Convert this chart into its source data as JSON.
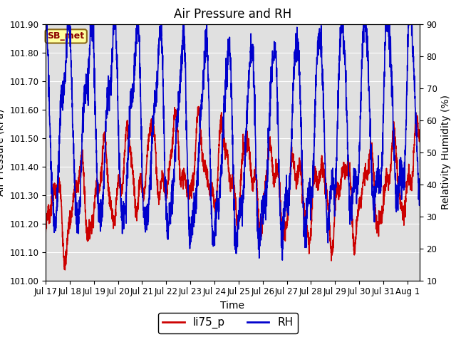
{
  "title": "Air Pressure and RH",
  "ylabel_left": "Air Pressure (kPa)",
  "ylabel_right": "Relativity Humidity (%)",
  "xlabel": "Time",
  "station_label": "SB_met",
  "ylim_left": [
    101.0,
    101.9
  ],
  "ylim_right": [
    10,
    90
  ],
  "yticks_left": [
    101.0,
    101.1,
    101.2,
    101.3,
    101.4,
    101.5,
    101.6,
    101.7,
    101.8,
    101.9
  ],
  "yticks_right": [
    10,
    20,
    30,
    40,
    50,
    60,
    70,
    80,
    90
  ],
  "color_pressure": "#cc0000",
  "color_rh": "#0000cc",
  "color_bg": "#e0e0e0",
  "legend_labels": [
    "li75_p",
    "RH"
  ],
  "title_fontsize": 12,
  "label_fontsize": 10,
  "tick_fontsize": 8.5,
  "x_tick_labels": [
    "Jul 17",
    "Jul 18",
    "Jul 19",
    "Jul 20",
    "Jul 21",
    "Jul 22",
    "Jul 23",
    "Jul 24",
    "Jul 25",
    "Jul 26",
    "Jul 27",
    "Jul 28",
    "Jul 29",
    "Jul 30",
    "Jul 31",
    "Aug 1"
  ],
  "num_days": 15.5,
  "line_width": 1.2
}
